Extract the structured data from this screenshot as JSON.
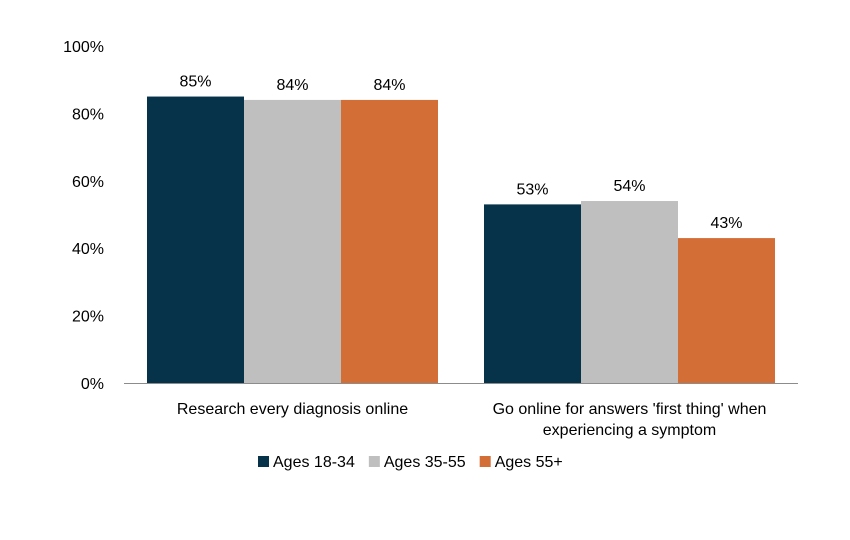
{
  "chart_data": {
    "type": "bar",
    "title": "",
    "xlabel": "",
    "ylabel": "",
    "ylim": [
      0,
      100
    ],
    "y_ticks": [
      "0%",
      "20%",
      "40%",
      "60%",
      "80%",
      "100%"
    ],
    "y_tick_values": [
      0,
      20,
      40,
      60,
      80,
      100
    ],
    "grid": false,
    "legend_position": "bottom",
    "categories": [
      [
        "Research every diagnosis online"
      ],
      [
        "Go online for answers 'first thing' when",
        "experiencing a symptom"
      ]
    ],
    "series": [
      {
        "name": "Ages 18-34",
        "color": "#06324a",
        "values": [
          85,
          53
        ],
        "labels": [
          "85%",
          "53%"
        ]
      },
      {
        "name": "Ages 35-55",
        "color": "#bfbfbf",
        "values": [
          84,
          54
        ],
        "labels": [
          "84%",
          "54%"
        ]
      },
      {
        "name": "Ages 55+",
        "color": "#d26e36",
        "values": [
          84,
          43
        ],
        "labels": [
          "84%",
          "43%"
        ]
      }
    ]
  }
}
